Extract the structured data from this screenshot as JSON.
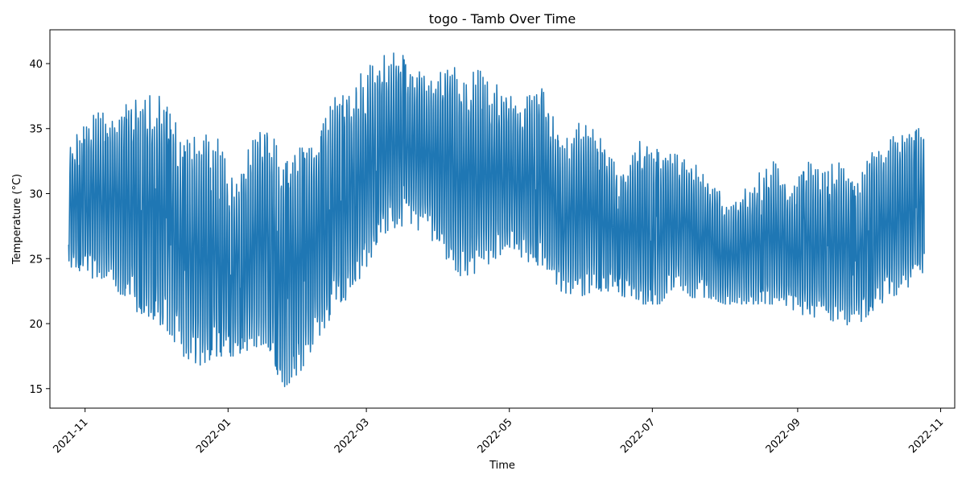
{
  "chart_data": {
    "type": "line",
    "title": "togo - Tamb Over Time",
    "xlabel": "Time",
    "ylabel": "Temperature (°C)",
    "x_tick_labels": [
      "2021-11",
      "2022-01",
      "2022-03",
      "2022-05",
      "2022-07",
      "2022-09",
      "2022-11"
    ],
    "x_tick_dates": [
      "2021-11-01",
      "2022-01-01",
      "2022-03-01",
      "2022-05-01",
      "2022-07-01",
      "2022-09-01",
      "2022-11-01"
    ],
    "y_ticks": [
      15,
      20,
      25,
      30,
      35,
      40
    ],
    "xlim": [
      "2021-10-17",
      "2022-11-07"
    ],
    "ylim": [
      13.5,
      42.6
    ],
    "grid": false,
    "legend": "none",
    "series": [
      {
        "color": "#1f77b4",
        "data_start": "2021-10-25",
        "data_end": "2022-10-25",
        "weekly_envelope": {
          "dates": [
            "2021-10-25",
            "2021-11-01",
            "2021-11-08",
            "2021-11-15",
            "2021-11-22",
            "2021-11-29",
            "2021-12-06",
            "2021-12-13",
            "2021-12-20",
            "2021-12-27",
            "2022-01-03",
            "2022-01-10",
            "2022-01-17",
            "2022-01-24",
            "2022-01-31",
            "2022-02-07",
            "2022-02-14",
            "2022-02-21",
            "2022-02-28",
            "2022-03-07",
            "2022-03-14",
            "2022-03-21",
            "2022-03-28",
            "2022-04-04",
            "2022-04-11",
            "2022-04-18",
            "2022-04-25",
            "2022-05-02",
            "2022-05-09",
            "2022-05-16",
            "2022-05-23",
            "2022-05-30",
            "2022-06-06",
            "2022-06-13",
            "2022-06-20",
            "2022-06-27",
            "2022-07-04",
            "2022-07-11",
            "2022-07-18",
            "2022-07-25",
            "2022-08-01",
            "2022-08-08",
            "2022-08-15",
            "2022-08-22",
            "2022-08-29",
            "2022-09-05",
            "2022-09-12",
            "2022-09-19",
            "2022-09-26",
            "2022-10-03",
            "2022-10-10",
            "2022-10-17",
            "2022-10-24"
          ],
          "min": [
            24.5,
            23.5,
            23.5,
            22.5,
            21.0,
            20.5,
            19.5,
            17.5,
            16.8,
            17.5,
            17.5,
            18.0,
            18.5,
            15.0,
            16.0,
            18.5,
            20.5,
            22.0,
            24.0,
            26.5,
            27.5,
            27.5,
            26.5,
            25.0,
            23.5,
            24.0,
            25.0,
            26.0,
            24.5,
            24.5,
            22.5,
            22.0,
            22.5,
            22.5,
            22.0,
            21.5,
            21.5,
            23.0,
            22.0,
            22.0,
            21.5,
            21.5,
            21.5,
            21.5,
            21.0,
            20.5,
            20.5,
            20.0,
            19.8,
            21.0,
            22.0,
            22.5,
            23.5
          ],
          "max": [
            34.0,
            35.5,
            36.5,
            36.5,
            37.8,
            38.0,
            37.0,
            34.0,
            34.5,
            34.5,
            31.0,
            33.5,
            36.0,
            32.5,
            33.5,
            33.5,
            37.5,
            38.0,
            39.5,
            40.5,
            41.0,
            40.0,
            39.5,
            40.5,
            39.0,
            39.5,
            38.5,
            37.5,
            37.5,
            38.5,
            33.5,
            35.5,
            35.5,
            33.0,
            32.0,
            34.5,
            33.5,
            33.0,
            32.5,
            31.5,
            29.5,
            30.0,
            31.5,
            32.5,
            30.0,
            32.5,
            31.5,
            33.0,
            30.5,
            33.5,
            34.5,
            35.0,
            35.0
          ]
        }
      }
    ]
  }
}
